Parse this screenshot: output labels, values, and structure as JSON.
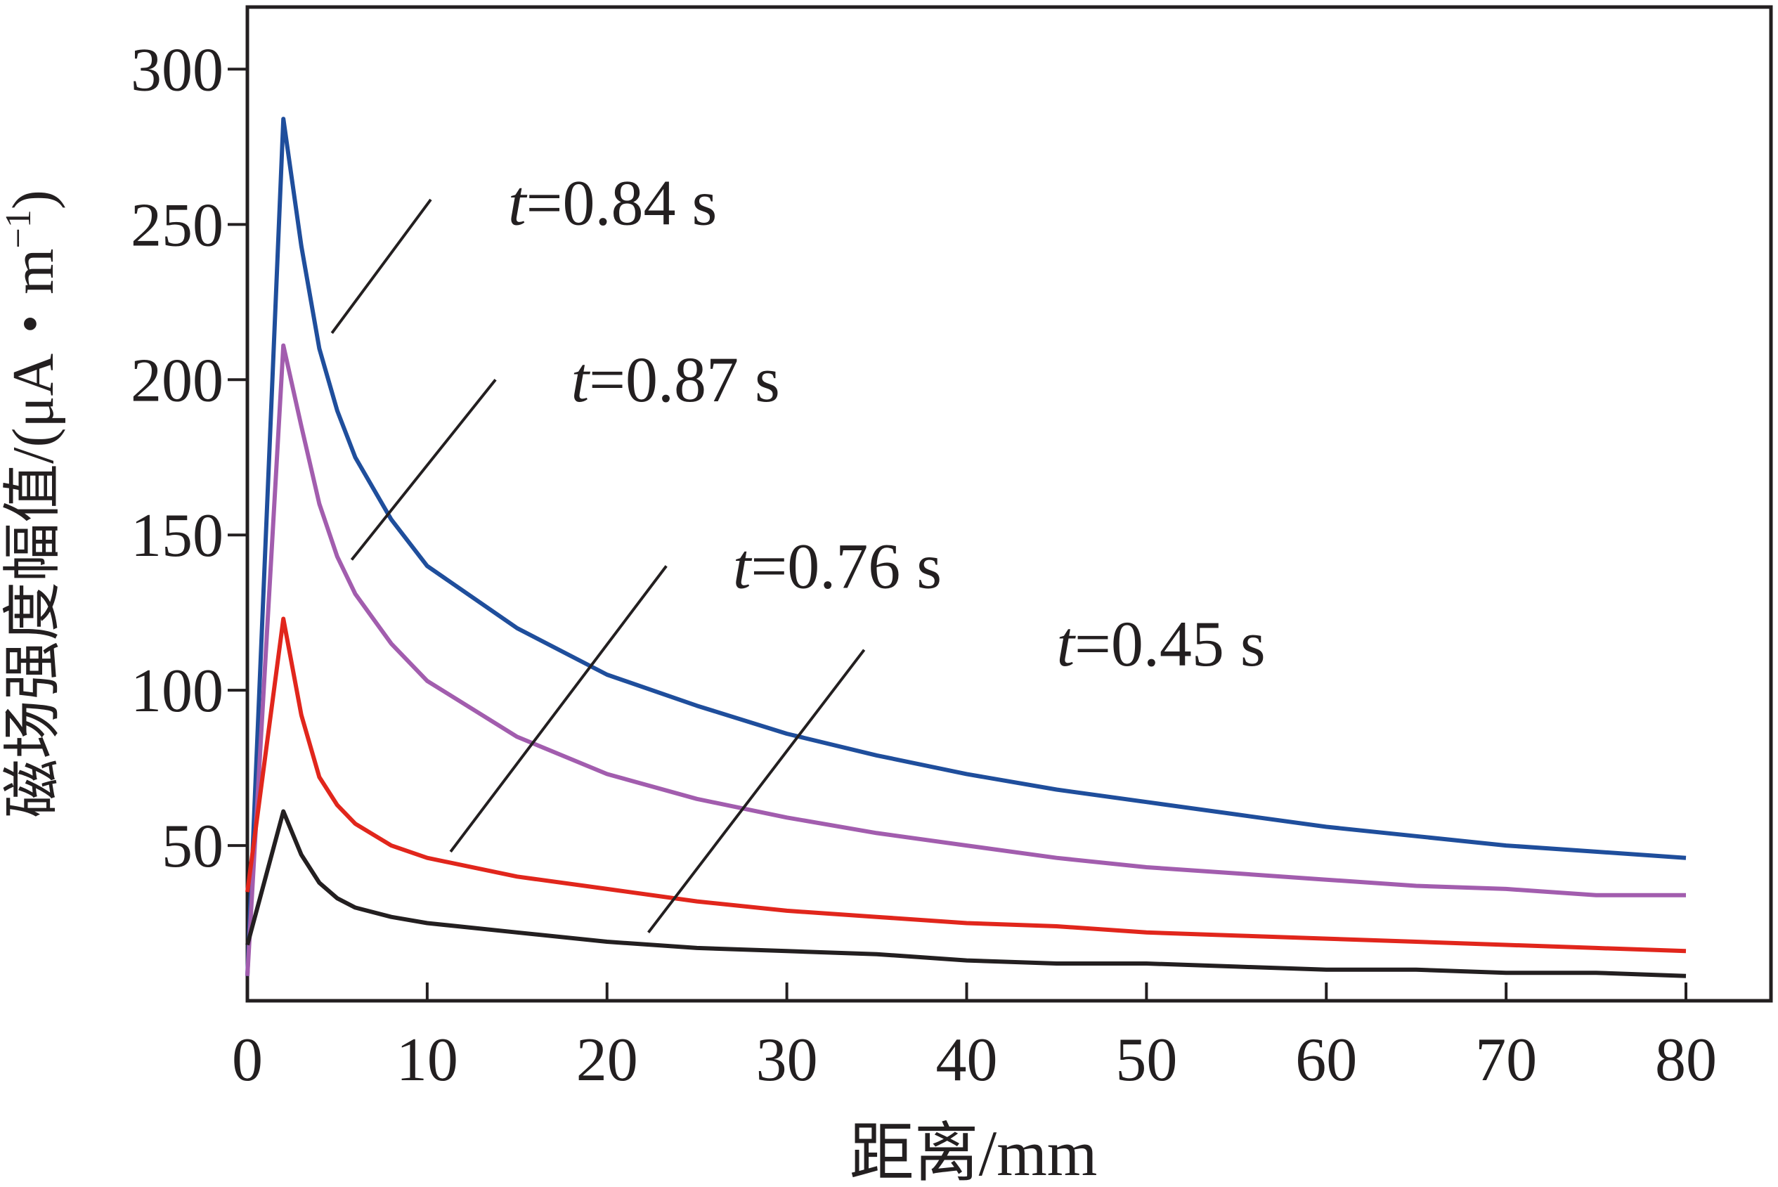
{
  "chart_data": {
    "type": "line",
    "xlabel": "距离/mm",
    "ylabel": "磁场强度幅值/(μA・m",
    "ylabel_sup": "−1",
    "ylabel_close": ")",
    "xlim": [
      0,
      80
    ],
    "ylim": [
      0,
      320
    ],
    "xticks": [
      0,
      10,
      20,
      30,
      40,
      50,
      60,
      70,
      80
    ],
    "yticks": [
      50,
      100,
      150,
      200,
      250,
      300
    ],
    "grid": false,
    "legend": "none",
    "series": [
      {
        "label_prefix": "t",
        "label_value": "=0.84 s",
        "color": "#1f4e9c",
        "x": [
          0,
          2,
          3,
          4,
          5,
          6,
          8,
          10,
          15,
          20,
          25,
          30,
          35,
          40,
          45,
          50,
          55,
          60,
          65,
          70,
          75,
          80
        ],
        "y": [
          8,
          284,
          243,
          210,
          190,
          175,
          155,
          140,
          120,
          105,
          95,
          86,
          79,
          73,
          68,
          64,
          60,
          56,
          53,
          50,
          48,
          46
        ],
        "label_pos": {
          "x": 14.5,
          "y": 250
        },
        "leader": [
          [
            10.2,
            258
          ],
          [
            4.7,
            215
          ]
        ]
      },
      {
        "label_prefix": "t",
        "label_value": "=0.87 s",
        "color": "#a25dae",
        "x": [
          0,
          2,
          3,
          4,
          5,
          6,
          8,
          10,
          15,
          20,
          25,
          30,
          35,
          40,
          45,
          50,
          55,
          60,
          65,
          70,
          75,
          80
        ],
        "y": [
          8,
          211,
          185,
          160,
          143,
          131,
          115,
          103,
          85,
          73,
          65,
          59,
          54,
          50,
          46,
          43,
          41,
          39,
          37,
          36,
          34,
          34
        ],
        "label_pos": {
          "x": 18,
          "y": 193
        },
        "leader": [
          [
            13.8,
            200
          ],
          [
            5.8,
            142
          ]
        ]
      },
      {
        "label_prefix": "t",
        "label_value": "=0.76 s",
        "color": "#e1261c",
        "x": [
          0,
          2,
          3,
          4,
          5,
          6,
          8,
          10,
          15,
          20,
          25,
          30,
          35,
          40,
          45,
          50,
          55,
          60,
          65,
          70,
          75,
          80
        ],
        "y": [
          35,
          123,
          92,
          72,
          63,
          57,
          50,
          46,
          40,
          36,
          32,
          29,
          27,
          25,
          24,
          22,
          21,
          20,
          19,
          18,
          17,
          16
        ],
        "label_pos": {
          "x": 27,
          "y": 133
        },
        "leader": [
          [
            23.3,
            140
          ],
          [
            11.3,
            48
          ]
        ]
      },
      {
        "label_prefix": "t",
        "label_value": "=0.45 s",
        "color": "#231f20",
        "x": [
          0,
          2,
          3,
          4,
          5,
          6,
          8,
          10,
          15,
          20,
          25,
          30,
          35,
          40,
          45,
          50,
          55,
          60,
          65,
          70,
          75,
          80
        ],
        "y": [
          18,
          61,
          47,
          38,
          33,
          30,
          27,
          25,
          22,
          19,
          17,
          16,
          15,
          13,
          12,
          12,
          11,
          10,
          10,
          9,
          9,
          8
        ],
        "label_pos": {
          "x": 45,
          "y": 108
        },
        "leader": [
          [
            34.3,
            113
          ],
          [
            22.3,
            22
          ]
        ]
      }
    ]
  }
}
